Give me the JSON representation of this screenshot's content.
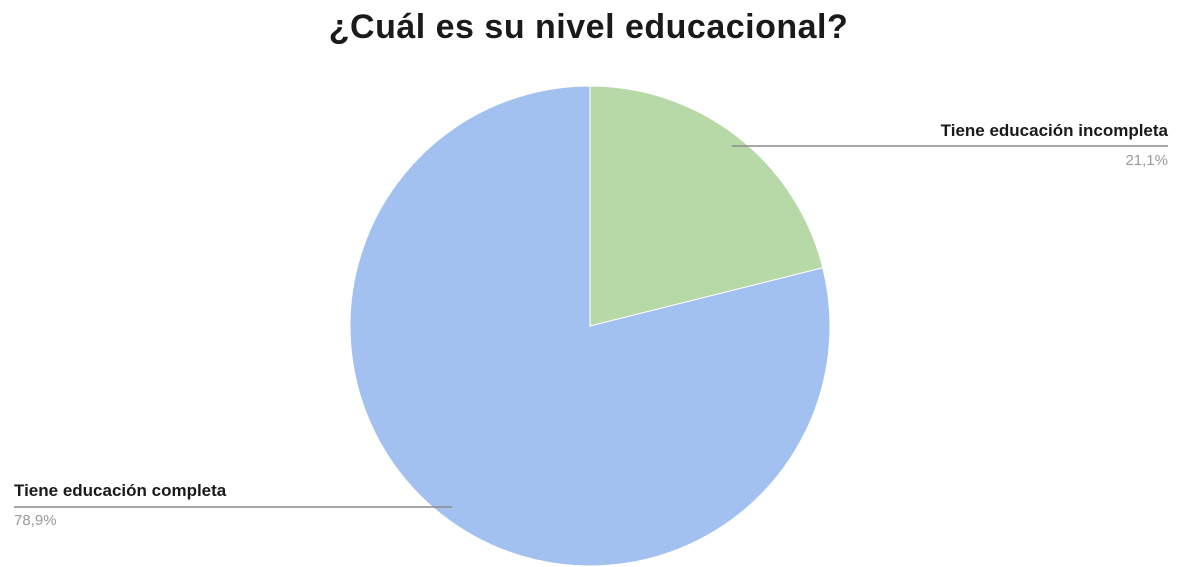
{
  "chart_data": {
    "type": "pie",
    "title": "¿Cuál es su nivel educacional?",
    "slices": [
      {
        "label": "Tiene educación incompleta",
        "value": 21.1,
        "value_label": "21,1%",
        "color": "#b7d8a7"
      },
      {
        "label": "Tiene educación completa",
        "value": 78.9,
        "value_label": "78,9%",
        "color": "#a3c1f0"
      }
    ],
    "start_angle_deg": 0,
    "direction": "clockwise",
    "legend": "none"
  }
}
